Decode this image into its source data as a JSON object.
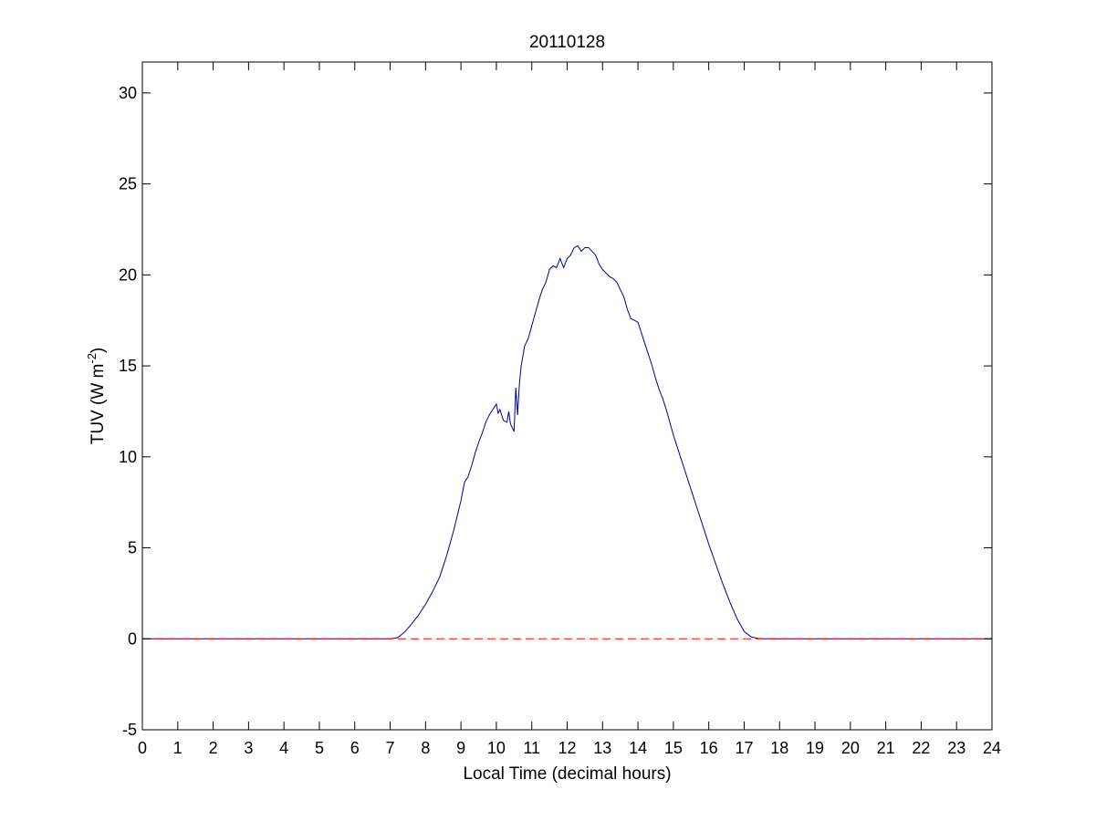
{
  "chart_data": {
    "type": "line",
    "title": "20110128",
    "xlabel": "Local Time (decimal hours)",
    "ylabel": "TUV (W m",
    "ylabel_exponent": "-2",
    "ylabel_close": ")",
    "xlim": [
      0,
      24
    ],
    "ylim": [
      -5,
      31.7
    ],
    "xticks": [
      0,
      1,
      2,
      3,
      4,
      5,
      6,
      7,
      8,
      9,
      10,
      11,
      12,
      13,
      14,
      15,
      16,
      17,
      18,
      19,
      20,
      21,
      22,
      23,
      24
    ],
    "yticks": [
      -5,
      0,
      5,
      10,
      15,
      20,
      25,
      30
    ],
    "grid": false,
    "series": [
      {
        "style": "solid",
        "color": "#00008b",
        "x": [
          0,
          7.0,
          7.2,
          7.4,
          7.6,
          7.8,
          8.0,
          8.2,
          8.4,
          8.6,
          8.8,
          9.0,
          9.1,
          9.2,
          9.3,
          9.4,
          9.5,
          9.6,
          9.7,
          9.8,
          9.9,
          10.0,
          10.05,
          10.1,
          10.2,
          10.3,
          10.35,
          10.4,
          10.5,
          10.55,
          10.6,
          10.65,
          10.7,
          10.8,
          10.9,
          11.0,
          11.1,
          11.2,
          11.3,
          11.4,
          11.5,
          11.6,
          11.7,
          11.8,
          11.9,
          12.0,
          12.1,
          12.2,
          12.3,
          12.4,
          12.5,
          12.6,
          12.7,
          12.8,
          12.9,
          13.0,
          13.1,
          13.2,
          13.3,
          13.4,
          13.5,
          13.6,
          13.7,
          13.8,
          13.9,
          14.0,
          14.1,
          14.2,
          14.3,
          14.4,
          14.5,
          14.6,
          14.7,
          14.8,
          14.9,
          15.0,
          15.2,
          15.4,
          15.6,
          15.8,
          16.0,
          16.2,
          16.4,
          16.6,
          16.8,
          17.0,
          17.2,
          17.4,
          17.6,
          17.8,
          18.0,
          24
        ],
        "y": [
          0,
          0,
          0.05,
          0.35,
          0.8,
          1.3,
          1.9,
          2.6,
          3.4,
          4.6,
          6.0,
          7.6,
          8.6,
          8.9,
          9.5,
          10.2,
          10.8,
          11.3,
          11.9,
          12.3,
          12.6,
          12.9,
          12.4,
          12.6,
          12.0,
          11.9,
          12.5,
          11.8,
          11.4,
          13.8,
          12.3,
          14.0,
          15.0,
          16.1,
          16.5,
          17.2,
          17.9,
          18.6,
          19.2,
          19.6,
          20.3,
          20.5,
          20.4,
          20.9,
          20.4,
          20.9,
          21.1,
          21.5,
          21.6,
          21.3,
          21.5,
          21.5,
          21.3,
          21.1,
          20.6,
          20.3,
          20.1,
          19.9,
          19.8,
          19.6,
          19.2,
          18.8,
          18.1,
          17.6,
          17.5,
          17.4,
          16.8,
          16.2,
          15.6,
          15.0,
          14.3,
          13.7,
          13.2,
          12.6,
          11.9,
          11.2,
          10.0,
          8.8,
          7.6,
          6.4,
          5.2,
          4.1,
          3.0,
          2.0,
          1.1,
          0.4,
          0.1,
          0.02,
          0,
          0,
          0,
          0
        ]
      },
      {
        "style": "dashed",
        "color": "#ff0000",
        "x": [
          0,
          24
        ],
        "y": [
          0,
          0
        ]
      }
    ]
  }
}
